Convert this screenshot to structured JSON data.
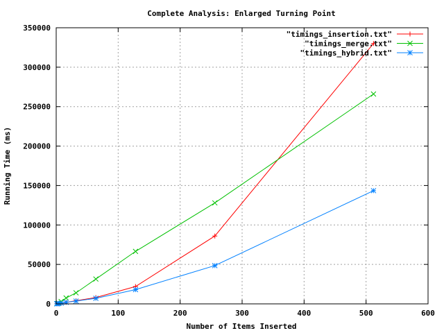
{
  "chart_data": {
    "type": "line",
    "title": "Complete Analysis: Enlarged Turning Point",
    "xlabel": "Number of Items Inserted",
    "ylabel": "Running Time (ms)",
    "xlim": [
      0,
      600
    ],
    "ylim": [
      0,
      350000
    ],
    "x_ticks": [
      0,
      100,
      200,
      300,
      400,
      500,
      600
    ],
    "y_ticks": [
      0,
      50000,
      100000,
      150000,
      200000,
      250000,
      300000,
      350000
    ],
    "grid": true,
    "legend_position": "top-right",
    "series": [
      {
        "name": "\"timings_insertion.txt\"",
        "color": "#ff0000",
        "marker": "plus",
        "x": [
          1,
          2,
          4,
          8,
          16,
          32,
          64,
          128,
          256,
          512
        ],
        "y": [
          100,
          200,
          400,
          900,
          2000,
          4000,
          8000,
          22000,
          86000,
          330000
        ]
      },
      {
        "name": "\"timings_merge.txt\"",
        "color": "#00c000",
        "marker": "cross",
        "x": [
          1,
          2,
          4,
          8,
          16,
          32,
          64,
          128,
          256,
          512
        ],
        "y": [
          200,
          400,
          1000,
          3000,
          7500,
          14000,
          31500,
          66500,
          128000,
          266000
        ]
      },
      {
        "name": "\"timings_hybrid.txt\"",
        "color": "#0080ff",
        "marker": "star",
        "x": [
          1,
          2,
          4,
          8,
          16,
          32,
          64,
          128,
          256,
          512
        ],
        "y": [
          100,
          200,
          400,
          900,
          2000,
          3500,
          7000,
          18000,
          48500,
          143500
        ]
      }
    ]
  }
}
